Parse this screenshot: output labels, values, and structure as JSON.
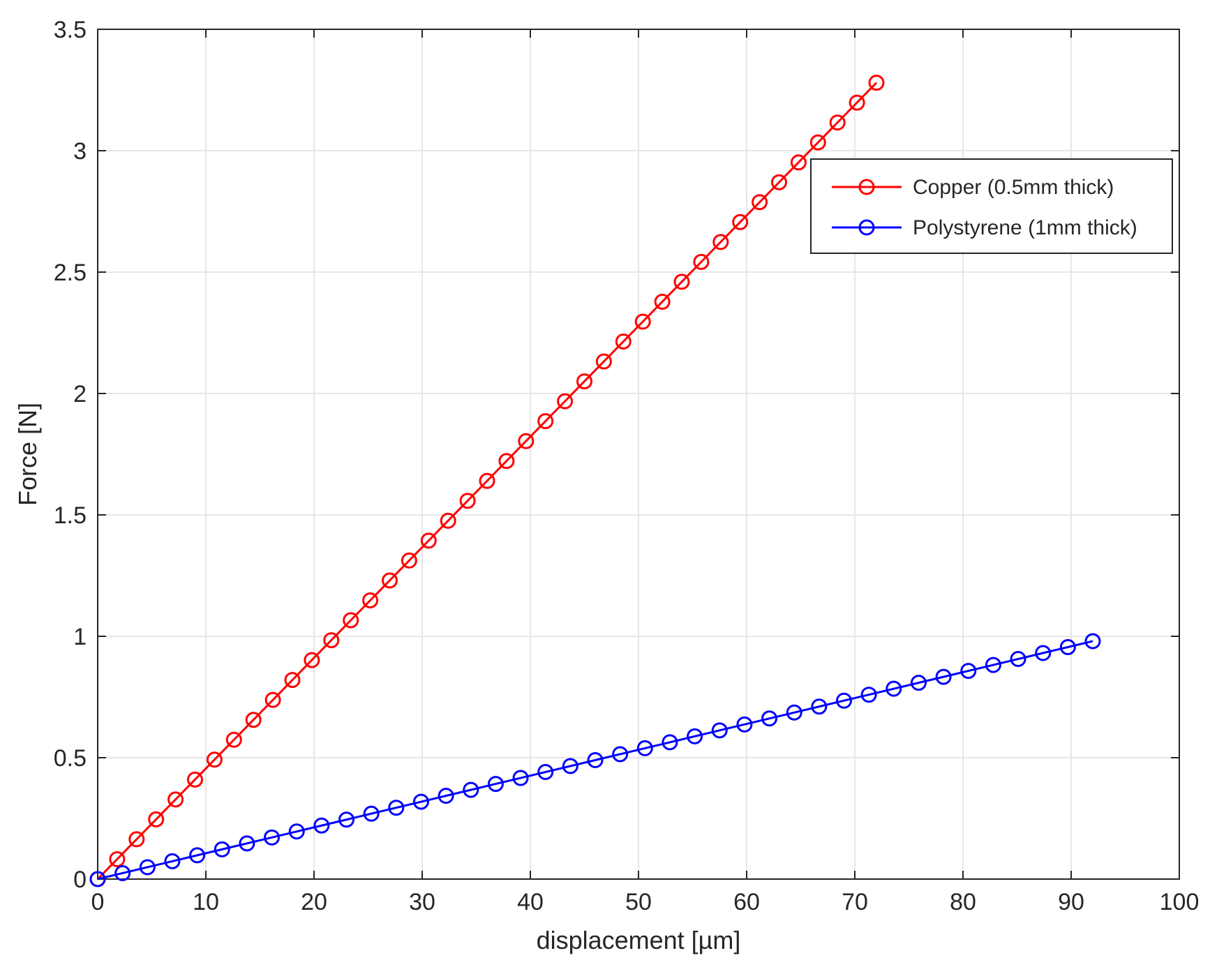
{
  "chart_data": {
    "type": "line",
    "title": "",
    "xlabel": "displacement [µm]",
    "ylabel": "Force [N]",
    "xlim": [
      0,
      100
    ],
    "ylim": [
      0,
      3.5
    ],
    "xticks": [
      "0",
      "10",
      "20",
      "30",
      "40",
      "50",
      "60",
      "70",
      "80",
      "90",
      "100"
    ],
    "yticks": [
      "0",
      "0.5",
      "1",
      "1.5",
      "2",
      "2.5",
      "3",
      "3.5"
    ],
    "grid": true,
    "legend_position": "top-right",
    "series": [
      {
        "name": "Copper (0.5mm thick)",
        "color": "#ff0000",
        "marker": "circle",
        "x": [
          0,
          1.8,
          3.6,
          5.4,
          7.2,
          9.0,
          10.8,
          12.6,
          14.4,
          16.2,
          18.0,
          19.8,
          21.6,
          23.4,
          25.2,
          27.0,
          28.8,
          30.6,
          32.4,
          34.2,
          36.0,
          37.8,
          39.6,
          41.4,
          43.2,
          45.0,
          46.8,
          48.6,
          50.4,
          52.2,
          54.0,
          55.8,
          57.6,
          59.4,
          61.2,
          63.0,
          64.8,
          66.6,
          68.4,
          70.2,
          72.0
        ],
        "y": [
          0.0,
          0.082,
          0.164,
          0.246,
          0.328,
          0.41,
          0.492,
          0.574,
          0.656,
          0.738,
          0.82,
          0.902,
          0.984,
          1.066,
          1.148,
          1.23,
          1.312,
          1.394,
          1.476,
          1.558,
          1.64,
          1.722,
          1.804,
          1.886,
          1.968,
          2.05,
          2.132,
          2.214,
          2.296,
          2.378,
          2.46,
          2.542,
          2.624,
          2.706,
          2.788,
          2.87,
          2.952,
          3.034,
          3.116,
          3.198,
          3.28
        ]
      },
      {
        "name": "Polystyrene (1mm thick)",
        "color": "#0000ff",
        "marker": "circle",
        "x": [
          0,
          2.3,
          4.6,
          6.9,
          9.2,
          11.5,
          13.8,
          16.1,
          18.4,
          20.7,
          23.0,
          25.3,
          27.6,
          29.9,
          32.2,
          34.5,
          36.8,
          39.1,
          41.4,
          43.7,
          46.0,
          48.3,
          50.6,
          52.9,
          55.2,
          57.5,
          59.8,
          62.1,
          64.4,
          66.7,
          69.0,
          71.3,
          73.6,
          75.9,
          78.2,
          80.5,
          82.8,
          85.1,
          87.4,
          89.7,
          92.0
        ],
        "y": [
          0.0,
          0.0245,
          0.049,
          0.0735,
          0.098,
          0.1225,
          0.147,
          0.1715,
          0.196,
          0.2205,
          0.245,
          0.2695,
          0.294,
          0.3185,
          0.343,
          0.3675,
          0.392,
          0.4165,
          0.441,
          0.4655,
          0.49,
          0.5145,
          0.539,
          0.5635,
          0.588,
          0.6125,
          0.637,
          0.6615,
          0.686,
          0.7105,
          0.735,
          0.7595,
          0.784,
          0.8085,
          0.833,
          0.8575,
          0.882,
          0.9065,
          0.931,
          0.9555,
          0.98
        ]
      }
    ]
  }
}
